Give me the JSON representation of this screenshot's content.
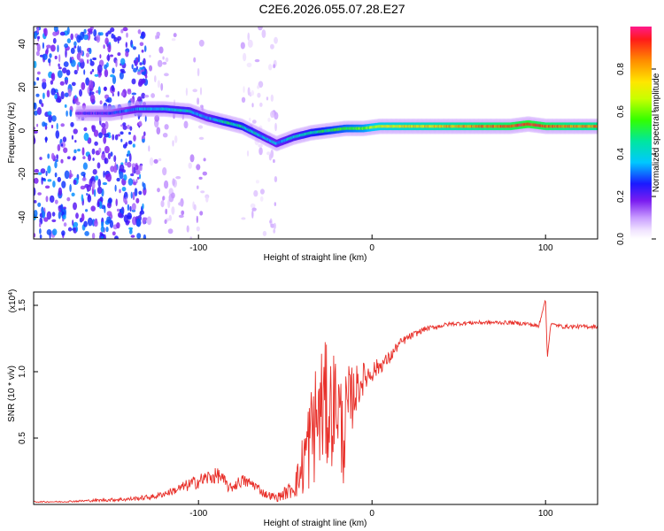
{
  "title": "C2E6.2026.055.07.28.E27",
  "chart_data": [
    {
      "type": "heatmap",
      "xlabel": "Height of straight line (km)",
      "ylabel": "Frequency (Hz)",
      "xlim": [
        -195,
        130
      ],
      "ylim": [
        -50,
        48
      ],
      "xticks": [
        -100,
        0,
        100
      ],
      "xtick_labels": [
        "-100",
        "0",
        "100"
      ],
      "yticks": [
        -40,
        -20,
        0,
        20,
        40
      ],
      "ytick_labels": [
        "-40",
        "-20",
        "0",
        "20",
        "40"
      ],
      "colorbar": {
        "label": "Normalized spectral amplitude",
        "range": [
          0,
          1
        ],
        "ticks": [
          0.0,
          0.2,
          0.4,
          0.6,
          0.8
        ],
        "tick_labels": [
          "0.0",
          "0.2",
          "0.4",
          "0.6",
          "0.8"
        ]
      },
      "ridge": {
        "x": [
          -170,
          -150,
          -135,
          -120,
          -105,
          -95,
          -85,
          -75,
          -65,
          -55,
          -45,
          -35,
          -25,
          -15,
          -5,
          5,
          20,
          40,
          60,
          80,
          90,
          100,
          115,
          130
        ],
        "freq": [
          8,
          8,
          10,
          10,
          9,
          6,
          4,
          2,
          -2,
          -6,
          -3,
          -1,
          0,
          1,
          1,
          2,
          2,
          2,
          2,
          2,
          3,
          2,
          2,
          2
        ],
        "amplitude": [
          0.2,
          0.25,
          0.35,
          0.4,
          0.4,
          0.35,
          0.45,
          0.45,
          0.4,
          0.35,
          0.4,
          0.45,
          0.5,
          0.55,
          0.6,
          0.7,
          0.75,
          0.8,
          0.85,
          0.9,
          0.95,
          0.9,
          0.85,
          0.85
        ]
      }
    },
    {
      "type": "line",
      "xlabel": "Height of straight line (km)",
      "ylabel": "SNR (10 * v/v)",
      "scale_label": "(x10",
      "scale_exponent": "4",
      "scale_close": ")",
      "xlim": [
        -195,
        130
      ],
      "ylim": [
        0,
        1.6
      ],
      "xticks": [
        -100,
        0,
        100
      ],
      "xtick_labels": [
        "-100",
        "0",
        "100"
      ],
      "yticks": [
        0.5,
        1.0,
        1.5
      ],
      "ytick_labels": [
        "0.5",
        "1.0",
        "1.5"
      ],
      "series": [
        {
          "name": "SNR",
          "color": "#e8302a",
          "x": [
            -195,
            -180,
            -160,
            -140,
            -125,
            -115,
            -105,
            -95,
            -88,
            -82,
            -75,
            -68,
            -62,
            -55,
            -48,
            -42,
            -38,
            -33,
            -28,
            -24,
            -20,
            -17,
            -14,
            -10,
            -5,
            0,
            5,
            10,
            15,
            20,
            30,
            45,
            60,
            80,
            90,
            96,
            100,
            101,
            103,
            110,
            120,
            130
          ],
          "y": [
            0.02,
            0.02,
            0.03,
            0.04,
            0.06,
            0.1,
            0.15,
            0.2,
            0.22,
            0.12,
            0.18,
            0.15,
            0.08,
            0.05,
            0.1,
            0.2,
            0.4,
            0.6,
            0.75,
            0.7,
            0.8,
            0.5,
            0.7,
            0.85,
            0.95,
            1.0,
            1.05,
            1.1,
            1.2,
            1.25,
            1.32,
            1.36,
            1.37,
            1.37,
            1.36,
            1.34,
            1.55,
            1.1,
            1.36,
            1.34,
            1.34,
            1.34
          ]
        }
      ],
      "noise_scale": [
        0.005,
        0.005,
        0.01,
        0.015,
        0.02,
        0.03,
        0.05,
        0.06,
        0.06,
        0.04,
        0.05,
        0.04,
        0.03,
        0.03,
        0.06,
        0.15,
        0.35,
        0.45,
        0.5,
        0.45,
        0.4,
        0.4,
        0.35,
        0.2,
        0.12,
        0.08,
        0.06,
        0.05,
        0.04,
        0.03,
        0.02,
        0.015,
        0.015,
        0.015,
        0.015,
        0.02,
        0,
        0,
        0.01,
        0.015,
        0.015,
        0.015
      ]
    }
  ]
}
